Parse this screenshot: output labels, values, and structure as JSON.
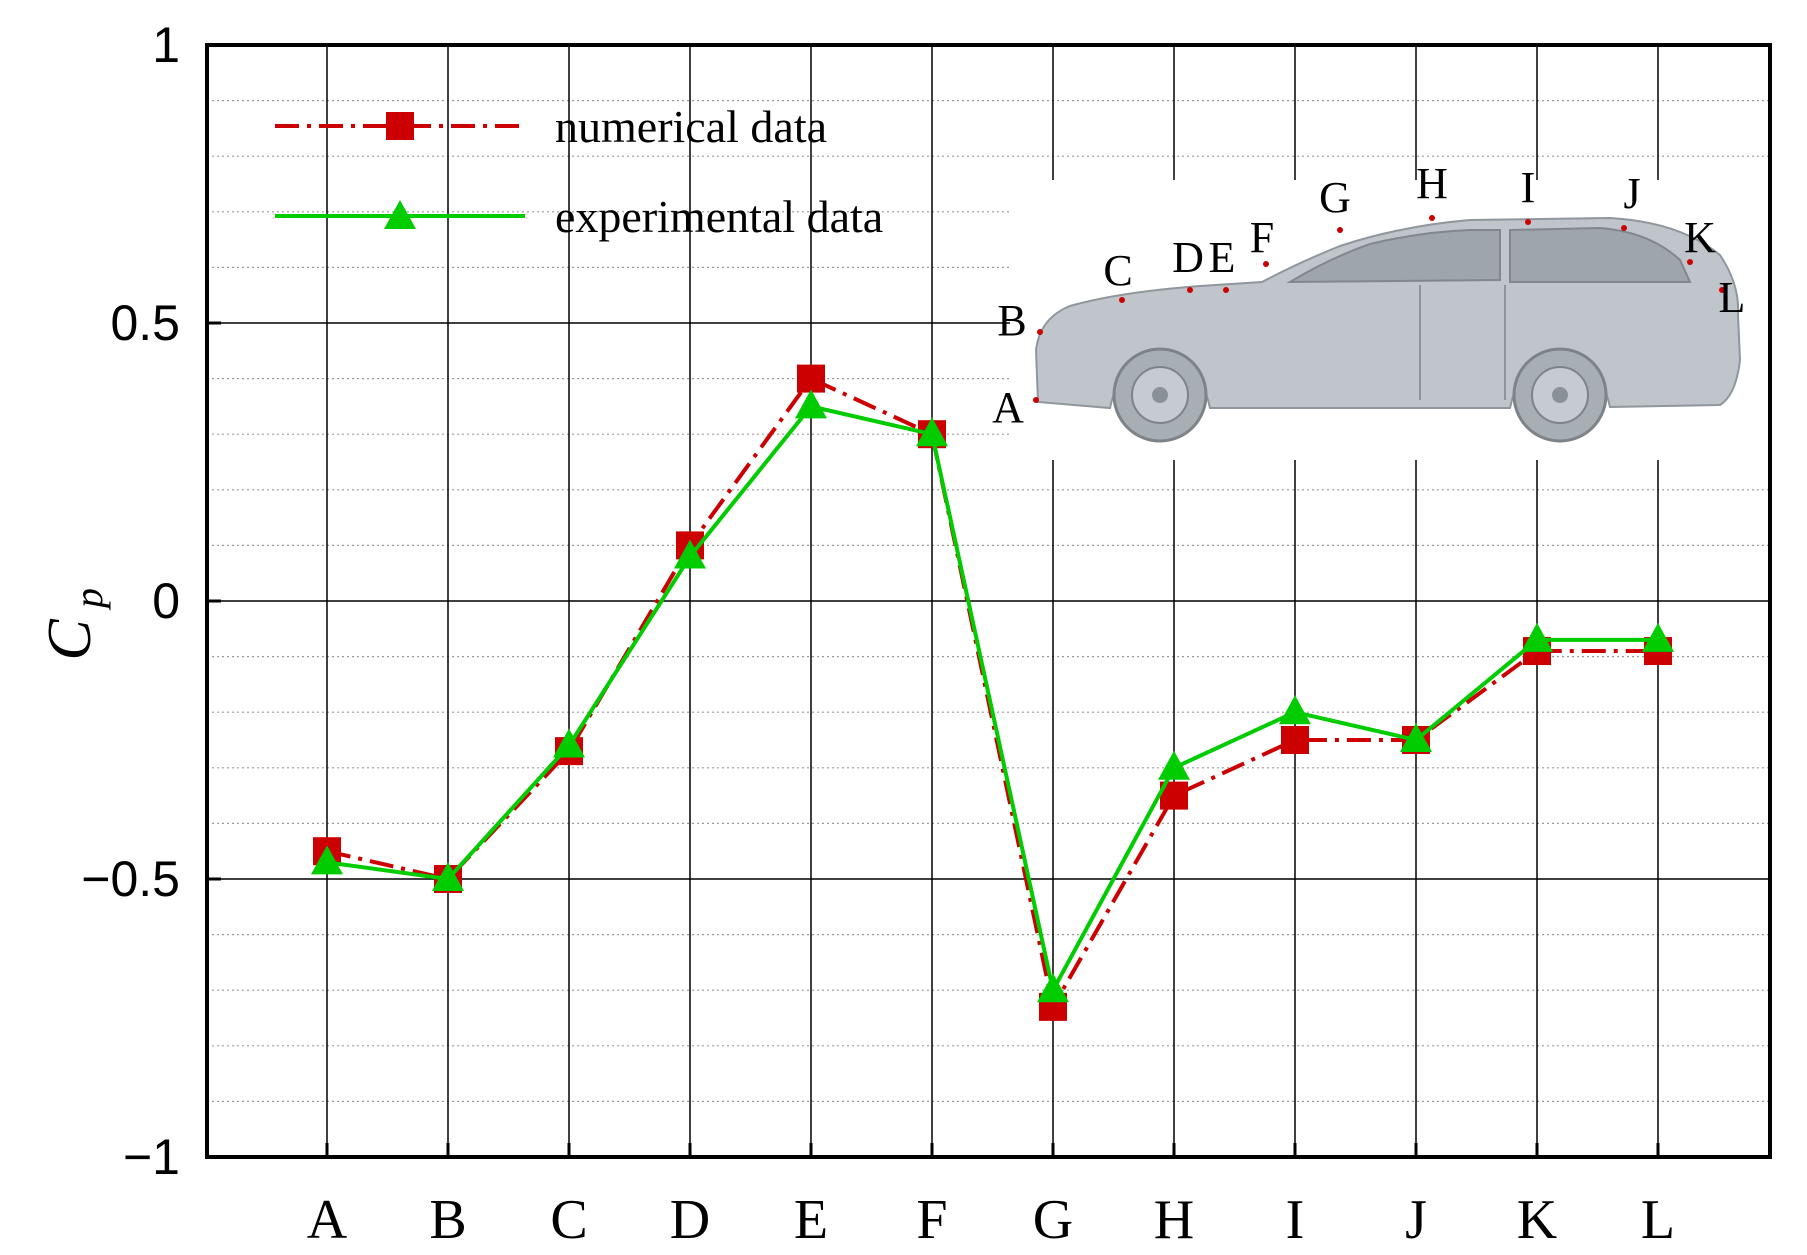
{
  "chart_data": {
    "type": "line",
    "categories": [
      "A",
      "B",
      "C",
      "D",
      "E",
      "F",
      "G",
      "H",
      "I",
      "J",
      "K",
      "L"
    ],
    "ylabel": "C",
    "ylabel_sub": "p",
    "ylim": [
      -1,
      1
    ],
    "yticks": [
      -1,
      -0.5,
      0,
      0.5,
      1
    ],
    "ytick_labels": [
      "−1",
      "−0.5",
      "0",
      "0.5",
      "1"
    ],
    "grid": true,
    "legend_position": "top-left",
    "series": [
      {
        "name": "numerical data",
        "color": "#cc0000",
        "marker": "square",
        "line_style": "dash-dot",
        "values": [
          -0.45,
          -0.5,
          -0.27,
          0.1,
          0.4,
          0.3,
          -0.73,
          -0.35,
          -0.25,
          -0.25,
          -0.09,
          -0.09
        ]
      },
      {
        "name": "experimental data",
        "color": "#00cc00",
        "marker": "triangle",
        "line_style": "solid",
        "values": [
          -0.47,
          -0.5,
          -0.26,
          0.08,
          0.35,
          0.3,
          -0.7,
          -0.3,
          -0.2,
          -0.25,
          -0.07,
          -0.07
        ]
      }
    ],
    "inset": {
      "description": "car-side-illustration",
      "point_labels": [
        "A",
        "B",
        "C",
        "D",
        "E",
        "F",
        "G",
        "H",
        "I",
        "J",
        "K",
        "L"
      ]
    }
  },
  "colors": {
    "car_body": "#b9bfc4",
    "grid_major": "#000000",
    "grid_minor": "#888888"
  }
}
